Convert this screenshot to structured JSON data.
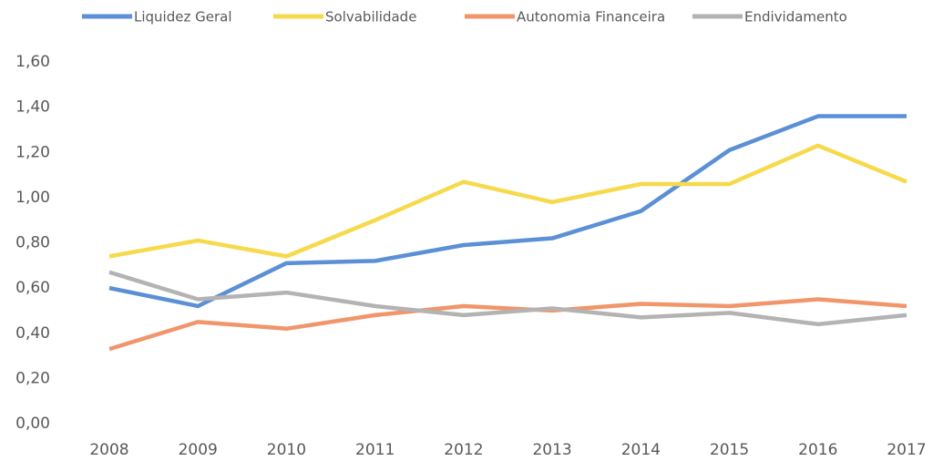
{
  "chart_data": {
    "type": "line",
    "categories": [
      "2008",
      "2009",
      "2010",
      "2011",
      "2012",
      "2013",
      "2014",
      "2015",
      "2016",
      "2017"
    ],
    "series": [
      {
        "name": "Liquidez Geral",
        "color": "#5b8fd6",
        "values": [
          0.6,
          0.52,
          0.71,
          0.72,
          0.79,
          0.82,
          0.94,
          1.21,
          1.36,
          1.36
        ]
      },
      {
        "name": "Solvabilidade",
        "color": "#f7d94c",
        "values": [
          0.74,
          0.81,
          0.74,
          0.9,
          1.07,
          0.98,
          1.06,
          1.06,
          1.23,
          1.07
        ]
      },
      {
        "name": "Autonomia Financeira",
        "color": "#f1956a",
        "values": [
          0.33,
          0.45,
          0.42,
          0.48,
          0.52,
          0.5,
          0.53,
          0.52,
          0.55,
          0.52
        ]
      },
      {
        "name": "Endividamento",
        "color": "#b3b3b3",
        "values": [
          0.67,
          0.55,
          0.58,
          0.52,
          0.48,
          0.51,
          0.47,
          0.49,
          0.44,
          0.48
        ]
      }
    ],
    "ylim": [
      0,
      1.6
    ],
    "yticks": [
      {
        "value": 0,
        "label": "0,00"
      },
      {
        "value": 0.2,
        "label": "0,20"
      },
      {
        "value": 0.4,
        "label": "0,40"
      },
      {
        "value": 0.6,
        "label": "0,60"
      },
      {
        "value": 0.8,
        "label": "0,80"
      },
      {
        "value": 1.0,
        "label": "1,00"
      },
      {
        "value": 1.2,
        "label": "1,20"
      },
      {
        "value": 1.4,
        "label": "1,40"
      },
      {
        "value": 1.6,
        "label": "1,60"
      }
    ],
    "grid": false,
    "legend": "top"
  }
}
